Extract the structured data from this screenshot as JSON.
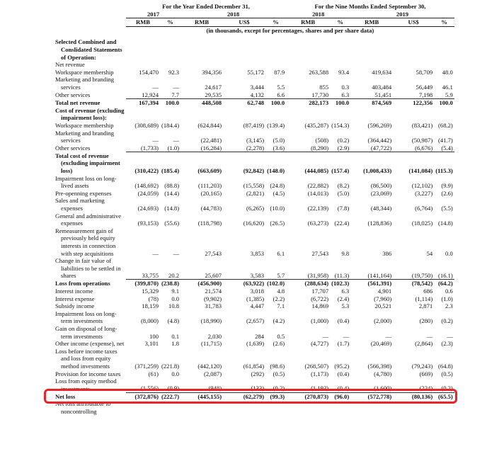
{
  "header": {
    "groups": [
      "For the Year Ended December 31,",
      "For the Nine Months Ended September 30,"
    ],
    "years": [
      "2017",
      "2018",
      "2018",
      "2019"
    ],
    "currencies": [
      "RMB",
      "%",
      "RMB",
      "US$",
      "%",
      "RMB",
      "%",
      "RMB",
      "US$",
      "%"
    ],
    "note": "(in thousands, except for percentages, shares and per share data)"
  },
  "table": {
    "rows": [
      {
        "label": "Selected Combined and Conslidated Statements of Operation:",
        "bold": true
      },
      {
        "label": "Net revenue"
      },
      {
        "label": "Workspace membership",
        "values": [
          "154,470",
          "92.3",
          "394,356",
          "55,172",
          "87.9",
          "263,588",
          "93.4",
          "419,634",
          "58,709",
          "48.0"
        ]
      },
      {
        "label": "Marketing and branding services",
        "values": [
          "—",
          "—",
          "24,617",
          "3,444",
          "5.5",
          "855",
          "0.3",
          "403,484",
          "56,449",
          "46.1"
        ]
      },
      {
        "label": "Other services",
        "values": [
          "12,924",
          "7.7",
          "29,535",
          "4,132",
          "6.6",
          "17,730",
          "6.3",
          "51,451",
          "7,198",
          "5.9"
        ]
      },
      {
        "label": "Total net revenue",
        "bold": true,
        "values": [
          "167,394",
          "100.0",
          "448,508",
          "62,748",
          "100.0",
          "282,173",
          "100.0",
          "874,569",
          "122,356",
          "100.0"
        ]
      },
      {
        "label": "Cost of revenue (excluding impairment loss):",
        "bold": true
      },
      {
        "label": "Workspace membership",
        "values": [
          "(308,689)",
          "(184.4)",
          "(624,844)",
          "(87,419)",
          "(139.4)",
          "(435,287)",
          "(154.3)",
          "(596,269)",
          "(83,421)",
          "(68.2)"
        ]
      },
      {
        "label": "Marketing and branding services",
        "values": [
          "—",
          "—",
          "(22,481)",
          "(3,145)",
          "(5.0)",
          "(508)",
          "(0.2)",
          "(364,442)",
          "(50,987)",
          "(41.7)"
        ]
      },
      {
        "label": "Other services",
        "values": [
          "(1,733)",
          "(1.0)",
          "(16,284)",
          "(2,278)",
          "(3.6)",
          "(8,290)",
          "(2.9)",
          "(47,722)",
          "(6,676)",
          "(5.4)"
        ]
      },
      {
        "label": "Total cost of revenue (excluding impairment loss)",
        "bold": true,
        "values": [
          "(310,422)",
          "(185.4)",
          "(663,609)",
          "(92,842)",
          "(148.0)",
          "(444,085)",
          "(157.4)",
          "(1,008,433)",
          "(141,084)",
          "(115.3)"
        ]
      },
      {
        "label": "Impairment loss on long-lived assets",
        "values": [
          "(148,692)",
          "(88.8)",
          "(111,203)",
          "(15,558)",
          "(24.8)",
          "(22,882)",
          "(8.2)",
          "(86,500)",
          "(12,102)",
          "(9.9)"
        ]
      },
      {
        "label": "Pre-openning expenses",
        "values": [
          "(24,059)",
          "(14.4)",
          "(20,165)",
          "(2,821)",
          "(4.5)",
          "(14,013)",
          "(5.0)",
          "(23,069)",
          "(3,227)",
          "(2.6)"
        ]
      },
      {
        "label": "Sales and marketing expenses",
        "values": [
          "(24,693)",
          "(14.8)",
          "(44,783)",
          "(6,265)",
          "(10.0)",
          "(22,139)",
          "(7.8)",
          "(48,344)",
          "(6,764)",
          "(5.5)"
        ]
      },
      {
        "label": "General and administrative expenses",
        "values": [
          "(93,153)",
          "(55.6)",
          "(118,798)",
          "(16,620)",
          "(26.5)",
          "(63,273)",
          "(22.4)",
          "(128,836)",
          "(18,025)",
          "(14.8)"
        ]
      },
      {
        "label": "Remeasurement gain of previously held equity interests in connection with step acquisitions",
        "values": [
          "—",
          "—",
          "27,543",
          "3,853",
          "6.1",
          "27,543",
          "9.8",
          "386",
          "54",
          "0.0"
        ]
      },
      {
        "label": "Change in fair value of liabilities to be settled in shares",
        "values": [
          "33,755",
          "20.2",
          "25,607",
          "3,583",
          "5.7",
          "(31,958)",
          "(11.3)",
          "(141,164)",
          "(19,750)",
          "(16.1)"
        ]
      },
      {
        "label": "Loss from operations",
        "bold": true,
        "values": [
          "(399,870)",
          "(238.8)",
          "(456,900)",
          "(63,922)",
          "(102.0)",
          "(288,634)",
          "(102.3)",
          "(561,391)",
          "(78,542)",
          "(64.2)"
        ]
      },
      {
        "label": "Interest income",
        "values": [
          "15,329",
          "9.1",
          "21,574",
          "3,018",
          "4.8",
          "17,707",
          "6.3",
          "4,901",
          "686",
          "0.6"
        ]
      },
      {
        "label": "Interest expense",
        "values": [
          "(78)",
          "0.0",
          "(9,902)",
          "(1,385)",
          "(2.2)",
          "(6,722)",
          "(2.4)",
          "(7,960)",
          "(1,114)",
          "(1.0)"
        ]
      },
      {
        "label": "Subsidy income",
        "values": [
          "18,159",
          "10.8",
          "31,783",
          "4,447",
          "7.1",
          "14,869",
          "5.3",
          "20,521",
          "2,871",
          "2.3"
        ]
      },
      {
        "label": "Impairment loss on long-term investments",
        "values": [
          "(8,000)",
          "(4.8)",
          "(18,990)",
          "(2,657)",
          "(4.2)",
          "(1,000)",
          "(0.4)",
          "(2,000)",
          "(280)",
          "(0.2)"
        ]
      },
      {
        "label": "Gain on disposal of long-term investments",
        "values": [
          "100",
          "0.1",
          "2,030",
          "284",
          "0.5",
          "—",
          "—",
          "—",
          "—",
          "—"
        ]
      },
      {
        "label": "Other income (expense), net",
        "values": [
          "3,101",
          "1.8",
          "(11,715)",
          "(1,639)",
          "(2.6)",
          "(4,727)",
          "(1.7)",
          "(20,469)",
          "(2,864)",
          "(2.3)"
        ]
      },
      {
        "label": "Loss before income taxes and loss from equity method investments",
        "values": [
          "(371,259)",
          "(221.8)",
          "(442,120)",
          "(61,854)",
          "(98.6)",
          "(268,507)",
          "(95.2)",
          "(566,398)",
          "(79,243)",
          "(64.8)"
        ]
      },
      {
        "label": "Provision for income taxes",
        "values": [
          "(61)",
          "0.0",
          "(2,087)",
          "(292)",
          "(0.5)",
          "(1,173)",
          "(0.4)",
          "(4,780)",
          "(669)",
          "(0.5)"
        ]
      },
      {
        "label": "Loss from equity method investments",
        "values": [
          "(1,556)",
          "(0.9)",
          "(948)",
          "(133)",
          "(0.2)",
          "(1,193)",
          "(0.4)",
          "(1,600)",
          "(224)",
          "(0.2)"
        ]
      },
      {
        "label": "Net loss",
        "bold": true,
        "highlighted": true,
        "values": [
          "(372,876)",
          "(222.7)",
          "(445,155)",
          "(62,279)",
          "(99.3)",
          "(270,873)",
          "(96.0)",
          "(572,778)",
          "(80,136)",
          "(65.5)"
        ]
      },
      {
        "label": "Net loss attributable to noncontrolling"
      }
    ]
  }
}
